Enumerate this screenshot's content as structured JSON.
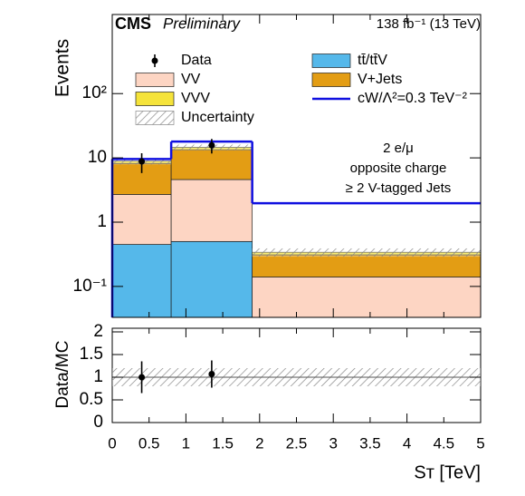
{
  "chart_data": {
    "type": "stacked_histogram",
    "experiment": "CMS",
    "status": "Preliminary",
    "lumi": "138 fb⁻¹ (13 TeV)",
    "ylabel": "Events",
    "xlabel": "Sᴛ [TeV]",
    "annotations": [
      "2 e/μ",
      "opposite charge",
      "≥ 2 V-tagged Jets"
    ],
    "bins": [
      0,
      0.8,
      1.9,
      5
    ],
    "series": [
      {
        "name": "tt̄/tt̄V",
        "color": "#55b8ea",
        "values": [
          0.45,
          0.5,
          0
        ]
      },
      {
        "name": "VV",
        "color": "#fdd5c3",
        "values": [
          2.25,
          4.1,
          0.14
        ]
      },
      {
        "name": "V+Jets",
        "color": "#e39d14",
        "values": [
          5.5,
          8.8,
          0.17
        ]
      },
      {
        "name": "VVV",
        "color": "#f5e33a",
        "values": [
          0.7,
          1.2,
          0.03
        ]
      }
    ],
    "uncertainty": {
      "name": "Uncertainty",
      "values": [
        1.0,
        1.5,
        0.05
      ]
    },
    "signal": {
      "name": "cW/Λ²=0.3 TeV⁻²",
      "color": "#1010e0",
      "values": [
        9.6,
        17.9,
        1.97
      ]
    },
    "data": {
      "name": "Data",
      "x": [
        0.4,
        1.35
      ],
      "values": [
        8.8,
        15.7
      ],
      "errors": [
        3,
        4
      ]
    },
    "xlim": [
      0,
      5
    ],
    "xticks": [
      0,
      0.5,
      1,
      1.5,
      2,
      2.5,
      3,
      3.5,
      4,
      4.5,
      5
    ],
    "ylim": [
      0.033,
      1700
    ],
    "yscale": "log",
    "yticks": [
      {
        "value": 0.1,
        "label": "10⁻¹"
      },
      1,
      10,
      {
        "value": 100,
        "label": "10²"
      }
    ],
    "ratio": {
      "ylabel": "Data/MC",
      "ylim": [
        0,
        2.08
      ],
      "yticks": [
        0,
        0.5,
        1,
        1.5,
        2
      ],
      "x": [
        0.4,
        1.35
      ],
      "values": [
        1.0,
        1.07
      ],
      "errors": [
        0.35,
        0.3
      ],
      "uncertainty": 0.2,
      "reference_line": 1
    }
  }
}
